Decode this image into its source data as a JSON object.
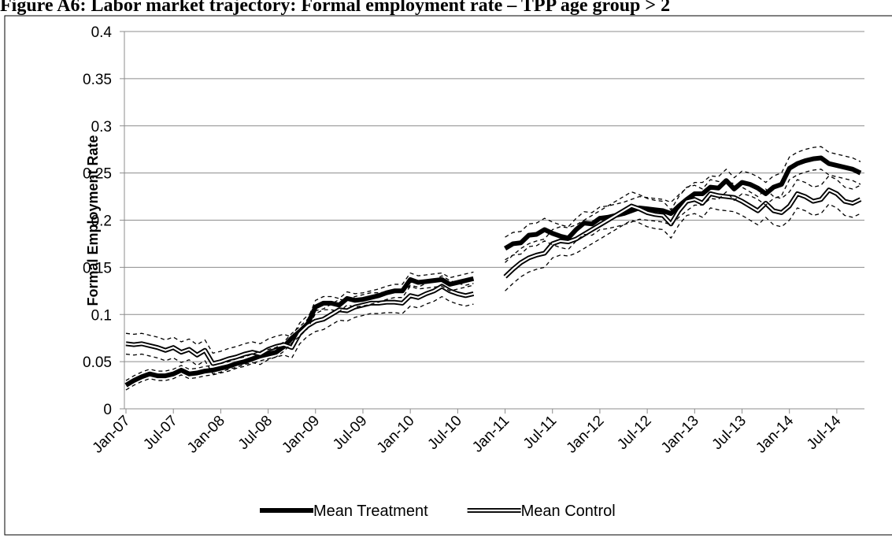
{
  "chart_data": {
    "type": "line",
    "title": "Figure A6: Labor market trajectory: Formal employment rate – TPP age group > 2",
    "y_label": "Formal Employment Rate",
    "categories": [
      "Jan-07",
      null,
      null,
      null,
      null,
      null,
      "Jul-07",
      null,
      null,
      null,
      null,
      null,
      "Jan-08",
      null,
      null,
      null,
      null,
      null,
      "Jul-08",
      null,
      null,
      null,
      null,
      null,
      "Jan-09",
      null,
      null,
      null,
      null,
      null,
      "Jul-09",
      null,
      null,
      null,
      null,
      null,
      "Jan-10",
      null,
      null,
      null,
      null,
      null,
      "Jul-10",
      null,
      null,
      null,
      null,
      null,
      "Jan-11",
      null,
      null,
      null,
      null,
      null,
      "Jul-11",
      null,
      null,
      null,
      null,
      null,
      "Jan-12",
      null,
      null,
      null,
      null,
      null,
      "Jul-12",
      null,
      null,
      null,
      null,
      null,
      "Jan-13",
      null,
      null,
      null,
      null,
      null,
      "Jul-13",
      null,
      null,
      null,
      null,
      null,
      "Jan-14",
      null,
      null,
      null,
      null,
      null,
      "Jul-14",
      null,
      null,
      null
    ],
    "ylim": [
      0,
      0.4
    ],
    "yticks": [
      0,
      0.05,
      0.1,
      0.15,
      0.2,
      0.25,
      0.3,
      0.35,
      0.4
    ],
    "grid": true,
    "legend": "bottom",
    "series": [
      {
        "name": "Mean Treatment",
        "color": "#000000",
        "line_style": "thick",
        "values": [
          0.025,
          0.03,
          0.034,
          0.037,
          0.035,
          0.035,
          0.037,
          0.041,
          0.037,
          0.038,
          0.04,
          0.041,
          0.043,
          0.045,
          0.048,
          0.05,
          0.053,
          0.056,
          0.058,
          0.06,
          0.066,
          0.075,
          0.082,
          0.09,
          0.108,
          0.112,
          0.112,
          0.11,
          0.117,
          0.115,
          0.116,
          0.118,
          0.12,
          0.123,
          0.125,
          0.125,
          0.137,
          0.134,
          0.135,
          0.136,
          0.137,
          0.132,
          0.134,
          0.136,
          0.138,
          null,
          null,
          null,
          0.17,
          0.175,
          0.176,
          0.184,
          0.185,
          0.19,
          0.186,
          0.183,
          0.181,
          0.19,
          0.197,
          0.196,
          0.202,
          0.203,
          0.205,
          0.207,
          0.21,
          0.213,
          0.212,
          0.211,
          0.21,
          0.207,
          0.215,
          0.222,
          0.228,
          0.228,
          0.235,
          0.234,
          0.242,
          0.233,
          0.24,
          0.238,
          0.234,
          0.228,
          0.235,
          0.238,
          0.255,
          0.26,
          0.263,
          0.265,
          0.266,
          0.26,
          0.258,
          0.256,
          0.254,
          0.25
        ]
      },
      {
        "name": "Mean Control",
        "color": "#000000",
        "line_style": "double",
        "values": [
          0.069,
          0.068,
          0.069,
          0.067,
          0.065,
          0.062,
          0.065,
          0.06,
          0.063,
          0.057,
          0.062,
          0.048,
          0.05,
          0.053,
          0.055,
          0.058,
          0.06,
          0.058,
          0.063,
          0.066,
          0.068,
          0.065,
          0.08,
          0.088,
          0.093,
          0.095,
          0.1,
          0.105,
          0.104,
          0.108,
          0.11,
          0.112,
          0.112,
          0.113,
          0.113,
          0.112,
          0.12,
          0.118,
          0.122,
          0.125,
          0.13,
          0.125,
          0.122,
          0.12,
          0.122,
          null,
          null,
          null,
          0.14,
          0.148,
          0.155,
          0.16,
          0.163,
          0.165,
          0.175,
          0.178,
          0.177,
          0.18,
          0.185,
          0.19,
          0.195,
          0.2,
          0.205,
          0.21,
          0.215,
          0.212,
          0.208,
          0.206,
          0.205,
          0.196,
          0.21,
          0.22,
          0.222,
          0.218,
          0.228,
          0.226,
          0.225,
          0.224,
          0.22,
          0.215,
          0.21,
          0.218,
          0.21,
          0.208,
          0.215,
          0.228,
          0.225,
          0.22,
          0.222,
          0.232,
          0.228,
          0.22,
          0.218,
          0.222
        ]
      },
      {
        "color": "#000000",
        "line_style": "dashed",
        "values": [
          0.03,
          0.035,
          0.039,
          0.042,
          0.04,
          0.04,
          0.042,
          0.046,
          0.042,
          0.043,
          0.045,
          0.046,
          0.048,
          0.05,
          0.053,
          0.055,
          0.058,
          0.061,
          0.063,
          0.065,
          0.071,
          0.08,
          0.087,
          0.095,
          0.115,
          0.119,
          0.119,
          0.117,
          0.124,
          0.122,
          0.123,
          0.125,
          0.127,
          0.13,
          0.132,
          0.132,
          0.144,
          0.141,
          0.142,
          0.143,
          0.144,
          0.139,
          0.141,
          0.143,
          0.145,
          null,
          null,
          null,
          0.182,
          0.187,
          0.188,
          0.196,
          0.197,
          0.202,
          0.198,
          0.195,
          0.193,
          0.202,
          0.209,
          0.208,
          0.214,
          0.215,
          0.217,
          0.219,
          0.222,
          0.225,
          0.224,
          0.223,
          0.222,
          0.219,
          0.227,
          0.234,
          0.24,
          0.24,
          0.247,
          0.246,
          0.254,
          0.245,
          0.252,
          0.25,
          0.246,
          0.24,
          0.247,
          0.25,
          0.267,
          0.272,
          0.275,
          0.277,
          0.278,
          0.272,
          0.27,
          0.268,
          0.266,
          0.262
        ]
      },
      {
        "color": "#000000",
        "line_style": "dashed",
        "values": [
          0.02,
          0.025,
          0.029,
          0.032,
          0.03,
          0.03,
          0.032,
          0.036,
          0.032,
          0.033,
          0.035,
          0.036,
          0.038,
          0.04,
          0.043,
          0.045,
          0.048,
          0.051,
          0.053,
          0.055,
          0.061,
          0.07,
          0.077,
          0.085,
          0.101,
          0.105,
          0.105,
          0.103,
          0.11,
          0.108,
          0.109,
          0.111,
          0.113,
          0.116,
          0.118,
          0.118,
          0.13,
          0.127,
          0.128,
          0.129,
          0.13,
          0.125,
          0.127,
          0.129,
          0.131,
          null,
          null,
          null,
          0.158,
          0.163,
          0.164,
          0.172,
          0.173,
          0.178,
          0.174,
          0.171,
          0.169,
          0.178,
          0.185,
          0.184,
          0.19,
          0.191,
          0.193,
          0.195,
          0.198,
          0.201,
          0.2,
          0.199,
          0.198,
          0.195,
          0.203,
          0.21,
          0.216,
          0.216,
          0.223,
          0.222,
          0.23,
          0.221,
          0.228,
          0.226,
          0.222,
          0.216,
          0.223,
          0.226,
          0.243,
          0.248,
          0.251,
          0.253,
          0.254,
          0.248,
          0.246,
          0.244,
          0.242,
          0.238
        ]
      },
      {
        "color": "#000000",
        "line_style": "dashed",
        "values": [
          0.08,
          0.079,
          0.08,
          0.078,
          0.076,
          0.073,
          0.076,
          0.071,
          0.074,
          0.068,
          0.073,
          0.059,
          0.061,
          0.064,
          0.066,
          0.069,
          0.071,
          0.069,
          0.074,
          0.077,
          0.079,
          0.076,
          0.091,
          0.099,
          0.104,
          0.106,
          0.111,
          0.116,
          0.115,
          0.119,
          0.121,
          0.123,
          0.123,
          0.124,
          0.124,
          0.123,
          0.131,
          0.129,
          0.133,
          0.136,
          0.141,
          0.136,
          0.133,
          0.131,
          0.133,
          null,
          null,
          null,
          0.155,
          0.163,
          0.17,
          0.175,
          0.178,
          0.18,
          0.19,
          0.193,
          0.192,
          0.195,
          0.2,
          0.205,
          0.21,
          0.215,
          0.22,
          0.225,
          0.23,
          0.227,
          0.223,
          0.221,
          0.22,
          0.211,
          0.225,
          0.235,
          0.237,
          0.233,
          0.243,
          0.241,
          0.24,
          0.239,
          0.235,
          0.23,
          0.225,
          0.233,
          0.225,
          0.223,
          0.23,
          0.243,
          0.24,
          0.235,
          0.237,
          0.247,
          0.243,
          0.235,
          0.233,
          0.237
        ]
      },
      {
        "color": "#000000",
        "line_style": "dashed",
        "values": [
          0.058,
          0.057,
          0.058,
          0.056,
          0.054,
          0.051,
          0.054,
          0.049,
          0.052,
          0.046,
          0.051,
          0.037,
          0.039,
          0.042,
          0.044,
          0.047,
          0.049,
          0.047,
          0.052,
          0.055,
          0.057,
          0.054,
          0.069,
          0.077,
          0.082,
          0.084,
          0.089,
          0.094,
          0.093,
          0.097,
          0.099,
          0.101,
          0.101,
          0.102,
          0.102,
          0.101,
          0.109,
          0.107,
          0.111,
          0.114,
          0.119,
          0.114,
          0.111,
          0.109,
          0.111,
          null,
          null,
          null,
          0.125,
          0.133,
          0.14,
          0.145,
          0.148,
          0.15,
          0.16,
          0.163,
          0.162,
          0.165,
          0.17,
          0.175,
          0.18,
          0.185,
          0.19,
          0.195,
          0.2,
          0.197,
          0.193,
          0.191,
          0.19,
          0.181,
          0.195,
          0.205,
          0.207,
          0.203,
          0.213,
          0.211,
          0.21,
          0.209,
          0.205,
          0.2,
          0.195,
          0.203,
          0.195,
          0.193,
          0.2,
          0.213,
          0.21,
          0.205,
          0.207,
          0.217,
          0.213,
          0.205,
          0.203,
          0.207
        ]
      }
    ]
  }
}
